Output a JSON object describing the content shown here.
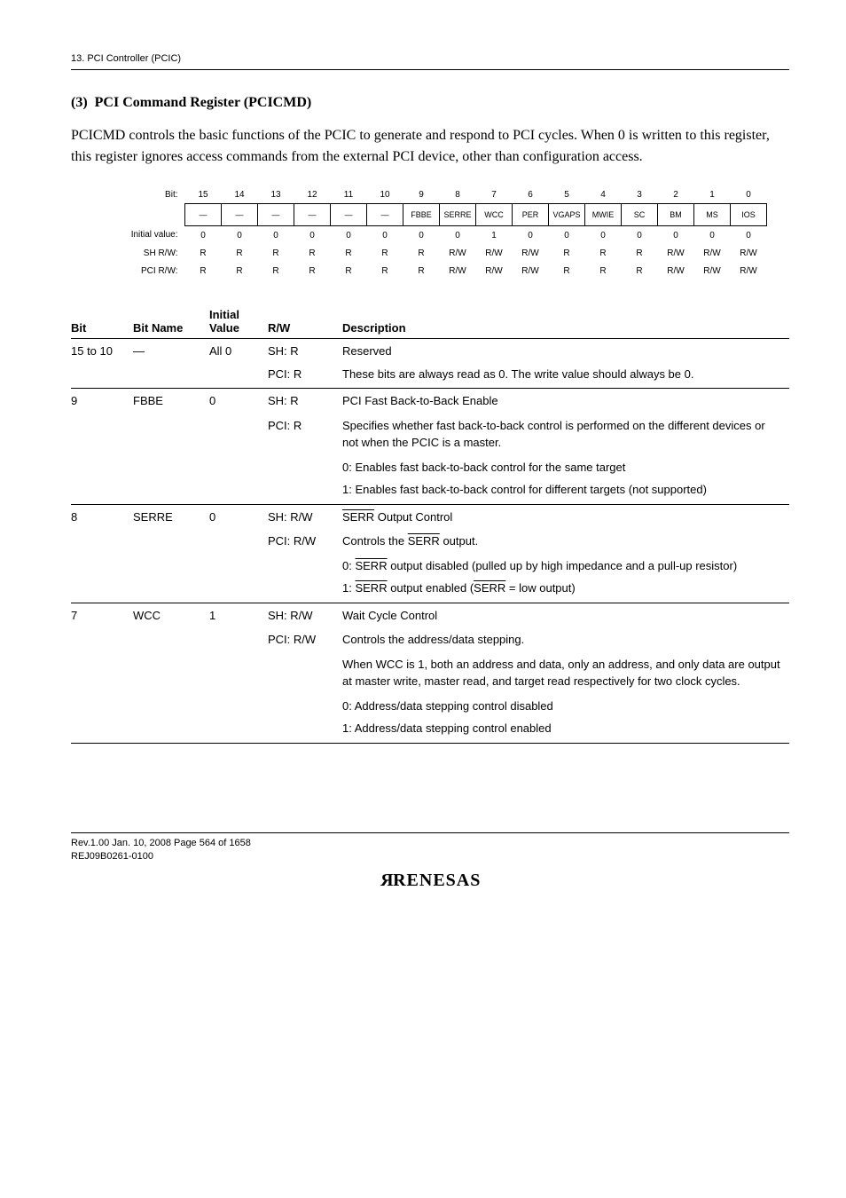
{
  "header": {
    "chapter": "13.   PCI Controller (PCIC)"
  },
  "section": {
    "number": "(3)",
    "title": "PCI Command Register (PCICMD)",
    "body": "PCICMD controls the basic functions of the PCIC to generate and respond to PCI cycles. When 0 is written to this register, this register ignores access commands from the external PCI device, other than configuration access."
  },
  "bitdiag": {
    "rowlabels": {
      "bit": "Bit:",
      "initial": "Initial value:",
      "sh": "SH R/W:",
      "pci": "PCI R/W:"
    },
    "bits": [
      "15",
      "14",
      "13",
      "12",
      "11",
      "10",
      "9",
      "8",
      "7",
      "6",
      "5",
      "4",
      "3",
      "2",
      "1",
      "0"
    ],
    "names": [
      "—",
      "—",
      "—",
      "—",
      "—",
      "—",
      "FBBE",
      "SERRE",
      "WCC",
      "PER",
      "VGAPS",
      "MWIE",
      "SC",
      "BM",
      "MS",
      "IOS"
    ],
    "initial": [
      "0",
      "0",
      "0",
      "0",
      "0",
      "0",
      "0",
      "0",
      "1",
      "0",
      "0",
      "0",
      "0",
      "0",
      "0",
      "0"
    ],
    "sh": [
      "R",
      "R",
      "R",
      "R",
      "R",
      "R",
      "R",
      "R/W",
      "R/W",
      "R/W",
      "R",
      "R",
      "R",
      "R/W",
      "R/W",
      "R/W"
    ],
    "pci": [
      "R",
      "R",
      "R",
      "R",
      "R",
      "R",
      "R",
      "R/W",
      "R/W",
      "R/W",
      "R",
      "R",
      "R",
      "R/W",
      "R/W",
      "R/W"
    ]
  },
  "desctable": {
    "headers": {
      "bit": "Bit",
      "name": "Bit Name",
      "initial_l1": "Initial",
      "initial_l2": "Value",
      "rw": "R/W",
      "desc": "Description"
    },
    "rows": {
      "r1": {
        "bit": "15 to 10",
        "name": "—",
        "initial": "All 0",
        "rw1": "SH: R",
        "desc1": "Reserved",
        "rw2": "PCI: R",
        "desc2": "These bits are always read as 0. The write value should always be 0."
      },
      "r2": {
        "bit": "9",
        "name": "FBBE",
        "initial": "0",
        "rw1": "SH: R",
        "desc1": "PCI Fast Back-to-Back Enable",
        "rw2": "PCI: R",
        "desc2": "Specifies whether fast back-to-back control is performed on the different devices or not when the PCIC is a master.",
        "desc3": "0: Enables fast back-to-back control for the same target",
        "desc4a": "1: Enables fast back-to-back control for different targets",
        "desc4b": "(not supported)"
      },
      "r3": {
        "bit": "8",
        "name": "SERRE",
        "initial": "0",
        "rw1": "SH: R/W",
        "desc1a": "SERR",
        "desc1b": " Output Control",
        "rw2": "PCI: R/W",
        "desc2a": "Controls the ",
        "desc2b": "SERR",
        "desc2c": " output.",
        "desc3a": "0: ",
        "desc3b": "SERR",
        "desc3c": " output disabled (pulled up by high impedance and a pull-up resistor)",
        "desc4a": "1: ",
        "desc4b": "SERR",
        "desc4c": " output enabled (",
        "desc4d": "SERR",
        "desc4e": " = low output)"
      },
      "r4": {
        "bit": "7",
        "name": "WCC",
        "initial": "1",
        "rw1": "SH: R/W",
        "desc1": "Wait Cycle Control",
        "rw2": "PCI: R/W",
        "desc2": "Controls the address/data stepping.",
        "desc3": "When WCC is 1, both an address and data, only an address, and only data are output at master write, master read, and target read respectively for two clock cycles.",
        "desc4": "0: Address/data stepping control disabled",
        "desc5": "1: Address/data stepping control enabled"
      }
    }
  },
  "footer": {
    "line1": "Rev.1.00  Jan. 10, 2008  Page 564 of 1658",
    "line2": "REJ09B0261-0100",
    "logo": "RENESAS"
  }
}
